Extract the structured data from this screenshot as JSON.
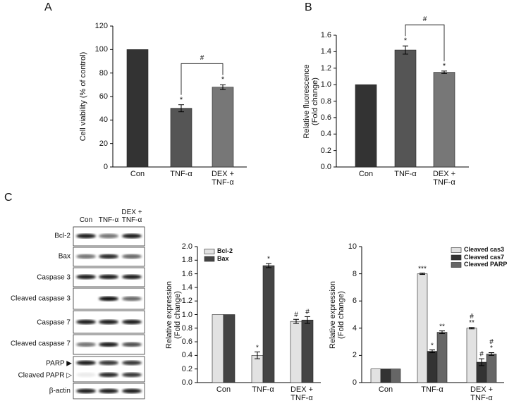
{
  "panel_labels": [
    "A",
    "B",
    "C"
  ],
  "blot": {
    "columns": [
      "Con",
      "TNF-α",
      "DEX +\nTNF-α"
    ],
    "rows": [
      "Bcl-2",
      "Bax",
      "Caspase 3",
      "Cleaved caspase 3",
      "Caspase 7",
      "Cleaved caspase 7",
      "PARP ▶",
      "Cleaved PAPR ▷",
      "β-actin"
    ]
  },
  "chart_data": [
    {
      "type": "bar",
      "ylabel": "Cell viability (% of control)",
      "categories": [
        "Con",
        "TNF-α",
        "DEX +\nTNF-α"
      ],
      "values": [
        100,
        50,
        68
      ],
      "errors": [
        null,
        3,
        2
      ],
      "colors": [
        "#333333",
        "#555555",
        "#777777"
      ],
      "significance": [
        null,
        "*",
        "*"
      ],
      "bracket_label": "#",
      "ylim": [
        0,
        120
      ],
      "yticks": [
        0,
        20,
        40,
        60,
        80,
        100,
        120
      ]
    },
    {
      "type": "bar",
      "ylabel": "Relative fluorescence\n(Fold change)",
      "categories": [
        "Con",
        "TNF-α",
        "DEX +\nTNF-α"
      ],
      "values": [
        1.0,
        1.42,
        1.15
      ],
      "errors": [
        null,
        0.05,
        0.015
      ],
      "colors": [
        "#333333",
        "#555555",
        "#777777"
      ],
      "significance": [
        null,
        "*",
        "*"
      ],
      "bracket_label": "#",
      "ylim": [
        0,
        1.6
      ],
      "yticks": [
        {
          "value": 0,
          "label": "0.0"
        },
        0.2,
        0.4,
        0.6,
        0.8,
        {
          "value": 1,
          "label": "1.0"
        },
        1.2,
        1.4,
        1.6
      ]
    },
    {
      "type": "grouped_bar",
      "ylabel": "Relative expression\n(Fold change)",
      "categories": [
        "Con",
        "TNF-α",
        "DEX +\nTNF-α"
      ],
      "series": [
        {
          "name": "Bcl-2",
          "color": "#e2e2e2",
          "values": [
            1.0,
            0.4,
            0.9
          ],
          "errors": [
            null,
            0.05,
            0.03
          ],
          "significance": [
            null,
            "*",
            "#"
          ]
        },
        {
          "name": "Bax",
          "color": "#444444",
          "values": [
            1.0,
            1.72,
            0.92
          ],
          "errors": [
            null,
            0.03,
            0.05
          ],
          "significance": [
            null,
            "*",
            "#"
          ]
        }
      ],
      "legend": "upper left",
      "ylim": [
        0,
        2.0
      ],
      "yticks": [
        {
          "value": 0,
          "label": "0.0"
        },
        0.2,
        0.4,
        0.6,
        0.8,
        {
          "value": 1,
          "label": "1.0"
        },
        1.2,
        1.4,
        1.6,
        1.8,
        {
          "value": 2,
          "label": "2.0"
        }
      ]
    },
    {
      "type": "grouped_bar",
      "ylabel": "Relative expression\n(Fold change)",
      "categories": [
        "Con",
        "TNF-α",
        "DEX +\nTNF-α"
      ],
      "series": [
        {
          "name": "Cleaved cas3",
          "color": "#e2e2e2",
          "values": [
            1,
            8,
            4
          ],
          "errors": [
            null,
            0.05,
            0.05
          ],
          "significance": [
            null,
            "***",
            "#\n**"
          ]
        },
        {
          "name": "Cleaved cas7",
          "color": "#333333",
          "values": [
            1,
            2.3,
            1.5
          ],
          "errors": [
            null,
            0.1,
            0.25
          ],
          "significance": [
            null,
            "*",
            "#"
          ]
        },
        {
          "name": "Cleaved PARP",
          "color": "#666666",
          "values": [
            1,
            3.7,
            2.1
          ],
          "errors": [
            null,
            0.1,
            0.1
          ],
          "significance": [
            null,
            "**",
            "#\n*"
          ]
        }
      ],
      "legend": "upper right",
      "ylim": [
        0,
        10
      ],
      "yticks": [
        0,
        2,
        4,
        6,
        8,
        10
      ]
    }
  ]
}
